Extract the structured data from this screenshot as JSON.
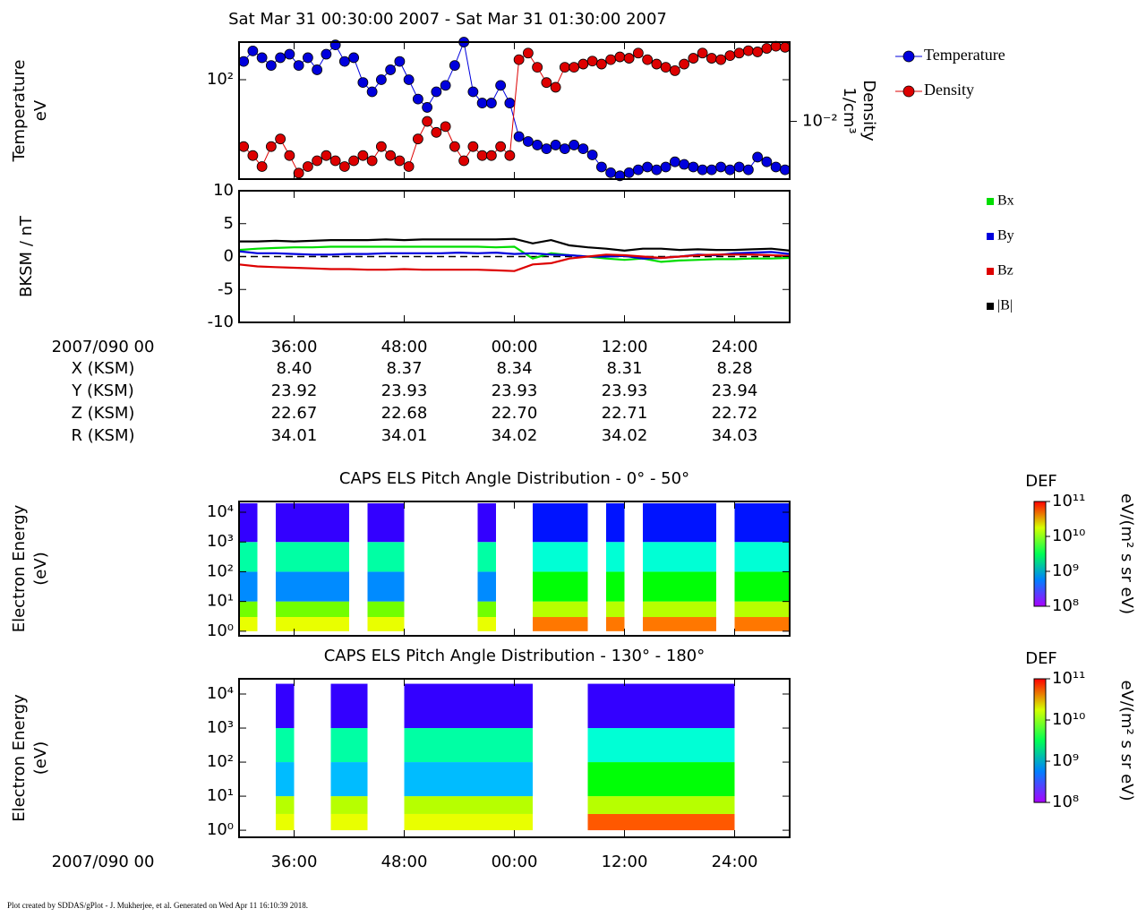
{
  "title": "Sat Mar 31 00:30:00 2007 - Sat Mar 31 01:30:00 2007",
  "footer": "Plot created by SDDAS/gPlot - J. Mukherjee, et al.  Generated on Wed Apr 11 16:10:39 2018.",
  "ephemeris": {
    "rows": [
      {
        "label": "X (KSM)",
        "values": [
          "8.40",
          "8.37",
          "8.34",
          "8.31",
          "8.28"
        ]
      },
      {
        "label": "Y (KSM)",
        "values": [
          "23.92",
          "23.93",
          "23.93",
          "23.93",
          "23.94"
        ]
      },
      {
        "label": "Z (KSM)",
        "values": [
          "22.67",
          "22.68",
          "22.70",
          "22.71",
          "22.72"
        ]
      },
      {
        "label": "R (KSM)",
        "values": [
          "34.01",
          "34.01",
          "34.02",
          "34.02",
          "34.03"
        ]
      }
    ]
  },
  "chart_data": [
    {
      "type": "line",
      "ylabel": [
        "Temperature",
        "eV"
      ],
      "y2label": [
        "Density",
        "1/cm³"
      ],
      "xlim": [
        30,
        90
      ],
      "xticks": [
        36,
        48,
        60,
        72,
        84
      ],
      "ylim": [
        16,
        200
      ],
      "ylog": true,
      "yticks": [
        {
          "value": 100,
          "label": "10²"
        }
      ],
      "y2lim": [
        0.0031,
        0.05
      ],
      "y2log": true,
      "y2ticks": [
        {
          "value": 0.01,
          "label": "10⁻²"
        }
      ],
      "legend": "right",
      "x": [
        30.5,
        31.5,
        32.5,
        33.5,
        34.5,
        35.5,
        36.5,
        37.5,
        38.5,
        39.5,
        40.5,
        41.5,
        42.5,
        43.5,
        44.5,
        45.5,
        46.5,
        47.5,
        48.5,
        49.5,
        50.5,
        51.5,
        52.5,
        53.5,
        54.5,
        55.5,
        56.5,
        57.5,
        58.5,
        59.5,
        60.5,
        61.5,
        62.5,
        63.5,
        64.5,
        65.5,
        66.5,
        67.5,
        68.5,
        69.5,
        70.5,
        71.5,
        72.5,
        73.5,
        74.5,
        75.5,
        76.5,
        77.5,
        78.5,
        79.5,
        80.5,
        81.5,
        82.5,
        83.5,
        84.5,
        85.5,
        86.5,
        87.5,
        88.5,
        89.5
      ],
      "series": [
        {
          "name": "Temperature",
          "color": "#0000dd",
          "marker": "circle",
          "values": [
            140,
            170,
            150,
            130,
            150,
            160,
            130,
            150,
            120,
            160,
            190,
            140,
            150,
            95,
            80,
            100,
            120,
            140,
            100,
            70,
            60,
            80,
            90,
            130,
            200,
            80,
            65,
            65,
            90,
            65,
            35,
            32,
            30,
            28,
            30,
            28,
            30,
            28,
            25,
            20,
            18,
            17,
            18,
            19,
            20,
            19,
            20,
            22,
            21,
            20,
            19,
            19,
            20,
            19,
            20,
            19,
            24,
            22,
            20,
            19
          ]
        },
        {
          "name": "Density",
          "color": "#dd0000",
          "marker": "circle",
          "axis": "y2",
          "values": [
            0.006,
            0.005,
            0.004,
            0.006,
            0.007,
            0.005,
            0.0035,
            0.004,
            0.0045,
            0.005,
            0.0045,
            0.004,
            0.0045,
            0.005,
            0.0045,
            0.006,
            0.005,
            0.0045,
            0.004,
            0.007,
            0.01,
            0.008,
            0.009,
            0.006,
            0.0045,
            0.006,
            0.005,
            0.005,
            0.006,
            0.005,
            0.035,
            0.04,
            0.03,
            0.022,
            0.02,
            0.03,
            0.03,
            0.032,
            0.034,
            0.032,
            0.035,
            0.037,
            0.036,
            0.04,
            0.035,
            0.032,
            0.03,
            0.028,
            0.032,
            0.036,
            0.04,
            0.036,
            0.035,
            0.038,
            0.04,
            0.042,
            0.041,
            0.044,
            0.046,
            0.045
          ]
        }
      ]
    },
    {
      "type": "line",
      "ylabel": [
        "BKSM / nT"
      ],
      "xlabel": "2007/090 00",
      "xlim": [
        30,
        90
      ],
      "xticks": [
        {
          "value": 36,
          "label": "36:00"
        },
        {
          "value": 48,
          "label": "48:00"
        },
        {
          "value": 60,
          "label": "00:00"
        },
        {
          "value": 72,
          "label": "12:00"
        },
        {
          "value": 84,
          "label": "24:00"
        }
      ],
      "ylim": [
        -10,
        10
      ],
      "yticks": [
        -10,
        -5,
        0,
        5,
        10
      ],
      "legend": "right",
      "x": [
        30,
        32,
        34,
        36,
        38,
        40,
        42,
        44,
        46,
        48,
        50,
        52,
        54,
        56,
        58,
        60,
        62,
        64,
        66,
        68,
        70,
        72,
        74,
        76,
        78,
        80,
        82,
        84,
        86,
        88,
        90
      ],
      "series": [
        {
          "name": "Bx",
          "color": "#00dd00",
          "values": [
            1.0,
            1.2,
            1.3,
            1.4,
            1.4,
            1.5,
            1.5,
            1.5,
            1.5,
            1.5,
            1.5,
            1.5,
            1.5,
            1.5,
            1.4,
            1.5,
            -0.3,
            0.5,
            0.2,
            0,
            -0.3,
            -0.5,
            -0.3,
            -0.8,
            -0.6,
            -0.5,
            -0.4,
            -0.4,
            -0.3,
            -0.3,
            -0.2
          ]
        },
        {
          "name": "By",
          "color": "#0000dd",
          "values": [
            0.8,
            0.5,
            0.5,
            0.4,
            0.3,
            0.3,
            0.4,
            0.4,
            0.5,
            0.5,
            0.5,
            0.5,
            0.6,
            0.5,
            0.6,
            0.4,
            0.5,
            0.3,
            0.2,
            0,
            0,
            0.1,
            -0.3,
            -0.2,
            0,
            0.3,
            0.2,
            0.5,
            0.6,
            0.7,
            0.4
          ]
        },
        {
          "name": "Bz",
          "color": "#dd0000",
          "values": [
            -1.2,
            -1.5,
            -1.6,
            -1.7,
            -1.8,
            -1.9,
            -1.9,
            -2.0,
            -2.0,
            -1.9,
            -2.0,
            -2.0,
            -2.0,
            -2.0,
            -2.1,
            -2.2,
            -1.2,
            -1.0,
            -0.3,
            0,
            0.3,
            0.2,
            0,
            -0.2,
            0,
            0.2,
            0.3,
            0.3,
            0.3,
            0.2,
            0.1
          ]
        },
        {
          "name": "|B|",
          "color": "#000000",
          "values": [
            2.3,
            2.3,
            2.4,
            2.3,
            2.4,
            2.5,
            2.5,
            2.5,
            2.6,
            2.5,
            2.6,
            2.6,
            2.6,
            2.6,
            2.6,
            2.7,
            2.0,
            2.5,
            1.7,
            1.4,
            1.2,
            0.9,
            1.2,
            1.2,
            1.0,
            1.1,
            1.0,
            1.0,
            1.1,
            1.2,
            0.9
          ]
        }
      ]
    },
    {
      "type": "heatmap",
      "title": "CAPS ELS Pitch Angle Distribution - 0° - 50°",
      "ylabel": [
        "Electron Energy",
        "(eV)"
      ],
      "xlim": [
        30,
        90
      ],
      "xticks": [
        36,
        48,
        60,
        72,
        84
      ],
      "ylim": [
        0.7,
        23000
      ],
      "ylog": true,
      "yticks": [
        {
          "value": 1,
          "label": "10⁰"
        },
        {
          "value": 10,
          "label": "10¹"
        },
        {
          "value": 100,
          "label": "10²"
        },
        {
          "value": 1000,
          "label": "10³"
        },
        {
          "value": 10000,
          "label": "10⁴"
        }
      ],
      "x_edges": [
        30,
        32,
        34,
        36,
        38,
        40,
        42,
        44,
        46,
        48,
        50,
        52,
        54,
        56,
        58,
        60,
        62,
        64,
        66,
        68,
        70,
        72,
        74,
        76,
        78,
        80,
        82,
        84,
        86,
        88,
        90
      ],
      "y_edges": [
        1,
        3,
        10,
        100,
        1000,
        20000
      ],
      "clabel": "DEF",
      "cunit": "eV/(m² s sr eV)",
      "clim": [
        100000000.0,
        100000000000.0
      ],
      "cticks": [
        {
          "value": 100000000.0,
          "label": "10⁸"
        },
        {
          "value": 1000000000.0,
          "label": "10⁹"
        },
        {
          "value": 10000000000.0,
          "label": "10¹⁰"
        },
        {
          "value": 100000000000.0,
          "label": "10¹¹"
        }
      ],
      "values": [
        [
          20000000000.0,
          null,
          20000000000.0,
          20000000000.0,
          20000000000.0,
          20000000000.0,
          null,
          20000000000.0,
          20000000000.0,
          null,
          null,
          null,
          null,
          20000000000.0,
          null,
          null,
          50000000000.0,
          50000000000.0,
          50000000000.0,
          null,
          50000000000.0,
          null,
          50000000000.0,
          50000000000.0,
          50000000000.0,
          50000000000.0,
          null,
          50000000000.0,
          50000000000.0,
          50000000000.0
        ],
        [
          10000000000.0,
          null,
          10000000000.0,
          10000000000.0,
          10000000000.0,
          10000000000.0,
          null,
          10000000000.0,
          10000000000.0,
          null,
          null,
          null,
          null,
          10000000000.0,
          null,
          null,
          15000000000.0,
          15000000000.0,
          15000000000.0,
          null,
          15000000000.0,
          null,
          15000000000.0,
          15000000000.0,
          15000000000.0,
          15000000000.0,
          null,
          15000000000.0,
          15000000000.0,
          15000000000.0
        ],
        [
          600000000.0,
          null,
          600000000.0,
          600000000.0,
          600000000.0,
          600000000.0,
          null,
          600000000.0,
          600000000.0,
          null,
          null,
          null,
          null,
          600000000.0,
          null,
          null,
          5000000000.0,
          5000000000.0,
          5000000000.0,
          null,
          5000000000.0,
          null,
          5000000000.0,
          5000000000.0,
          5000000000.0,
          5000000000.0,
          null,
          5000000000.0,
          5000000000.0,
          5000000000.0
        ],
        [
          2000000000.0,
          null,
          2000000000.0,
          2000000000.0,
          2000000000.0,
          2000000000.0,
          null,
          2000000000.0,
          2000000000.0,
          null,
          null,
          null,
          null,
          2000000000.0,
          null,
          null,
          1500000000.0,
          1500000000.0,
          1500000000.0,
          null,
          1500000000.0,
          null,
          1500000000.0,
          1500000000.0,
          1500000000.0,
          1500000000.0,
          null,
          1500000000.0,
          1500000000.0,
          1500000000.0
        ],
        [
          200000000.0,
          null,
          200000000.0,
          200000000.0,
          200000000.0,
          200000000.0,
          null,
          200000000.0,
          200000000.0,
          null,
          null,
          null,
          null,
          200000000.0,
          null,
          null,
          300000000.0,
          300000000.0,
          300000000.0,
          null,
          300000000.0,
          null,
          300000000.0,
          300000000.0,
          300000000.0,
          300000000.0,
          null,
          300000000.0,
          300000000.0,
          300000000.0
        ]
      ]
    },
    {
      "type": "heatmap",
      "title": "CAPS ELS Pitch Angle Distribution - 130° - 180°",
      "ylabel": [
        "Electron Energy",
        "(eV)"
      ],
      "xlabel": "2007/090 00",
      "xlim": [
        30,
        90
      ],
      "xticks": [
        {
          "value": 36,
          "label": "36:00"
        },
        {
          "value": 48,
          "label": "48:00"
        },
        {
          "value": 60,
          "label": "00:00"
        },
        {
          "value": 72,
          "label": "12:00"
        },
        {
          "value": 84,
          "label": "24:00"
        }
      ],
      "ylim": [
        0.62,
        28000
      ],
      "ylog": true,
      "yticks": [
        {
          "value": 1,
          "label": "10⁰"
        },
        {
          "value": 10,
          "label": "10¹"
        },
        {
          "value": 100,
          "label": "10²"
        },
        {
          "value": 1000,
          "label": "10³"
        },
        {
          "value": 10000,
          "label": "10⁴"
        }
      ],
      "x_edges": [
        30,
        32,
        34,
        36,
        38,
        40,
        42,
        44,
        46,
        48,
        50,
        52,
        54,
        56,
        58,
        60,
        62,
        64,
        66,
        68,
        70,
        72,
        74,
        76,
        78,
        80,
        82,
        84,
        86,
        88,
        90
      ],
      "y_edges": [
        1,
        3,
        10,
        100,
        1000,
        20000
      ],
      "clabel": "DEF",
      "cunit": "eV/(m² s sr eV)",
      "clim": [
        100000000.0,
        100000000000.0
      ],
      "cticks": [
        {
          "value": 100000000.0,
          "label": "10⁸"
        },
        {
          "value": 1000000000.0,
          "label": "10⁹"
        },
        {
          "value": 10000000000.0,
          "label": "10¹⁰"
        },
        {
          "value": 100000000000.0,
          "label": "10¹¹"
        }
      ],
      "values": [
        [
          null,
          null,
          20000000000.0,
          null,
          null,
          20000000000.0,
          20000000000.0,
          null,
          null,
          20000000000.0,
          20000000000.0,
          20000000000.0,
          20000000000.0,
          20000000000.0,
          20000000000.0,
          20000000000.0,
          null,
          null,
          null,
          60000000000.0,
          60000000000.0,
          60000000000.0,
          60000000000.0,
          60000000000.0,
          60000000000.0,
          60000000000.0,
          60000000000.0,
          null,
          null,
          null
        ],
        [
          null,
          null,
          15000000000.0,
          null,
          null,
          15000000000.0,
          15000000000.0,
          null,
          null,
          15000000000.0,
          15000000000.0,
          15000000000.0,
          15000000000.0,
          15000000000.0,
          15000000000.0,
          15000000000.0,
          null,
          null,
          null,
          15000000000.0,
          15000000000.0,
          15000000000.0,
          15000000000.0,
          15000000000.0,
          15000000000.0,
          15000000000.0,
          15000000000.0,
          null,
          null,
          null
        ],
        [
          null,
          null,
          800000000.0,
          null,
          null,
          800000000.0,
          800000000.0,
          null,
          null,
          800000000.0,
          800000000.0,
          800000000.0,
          800000000.0,
          800000000.0,
          800000000.0,
          800000000.0,
          null,
          null,
          null,
          5000000000.0,
          5000000000.0,
          5000000000.0,
          5000000000.0,
          5000000000.0,
          5000000000.0,
          5000000000.0,
          5000000000.0,
          null,
          null,
          null
        ],
        [
          null,
          null,
          2000000000.0,
          null,
          null,
          2000000000.0,
          2000000000.0,
          null,
          null,
          2000000000.0,
          2000000000.0,
          2000000000.0,
          2000000000.0,
          2000000000.0,
          2000000000.0,
          2000000000.0,
          null,
          null,
          null,
          1500000000.0,
          1500000000.0,
          1500000000.0,
          1500000000.0,
          1500000000.0,
          1500000000.0,
          1500000000.0,
          1500000000.0,
          null,
          null,
          null
        ],
        [
          null,
          null,
          200000000.0,
          null,
          null,
          200000000.0,
          200000000.0,
          null,
          null,
          200000000.0,
          200000000.0,
          200000000.0,
          200000000.0,
          200000000.0,
          200000000.0,
          200000000.0,
          null,
          null,
          null,
          200000000.0,
          200000000.0,
          200000000.0,
          200000000.0,
          200000000.0,
          200000000.0,
          200000000.0,
          200000000.0,
          null,
          null,
          null
        ]
      ]
    }
  ]
}
